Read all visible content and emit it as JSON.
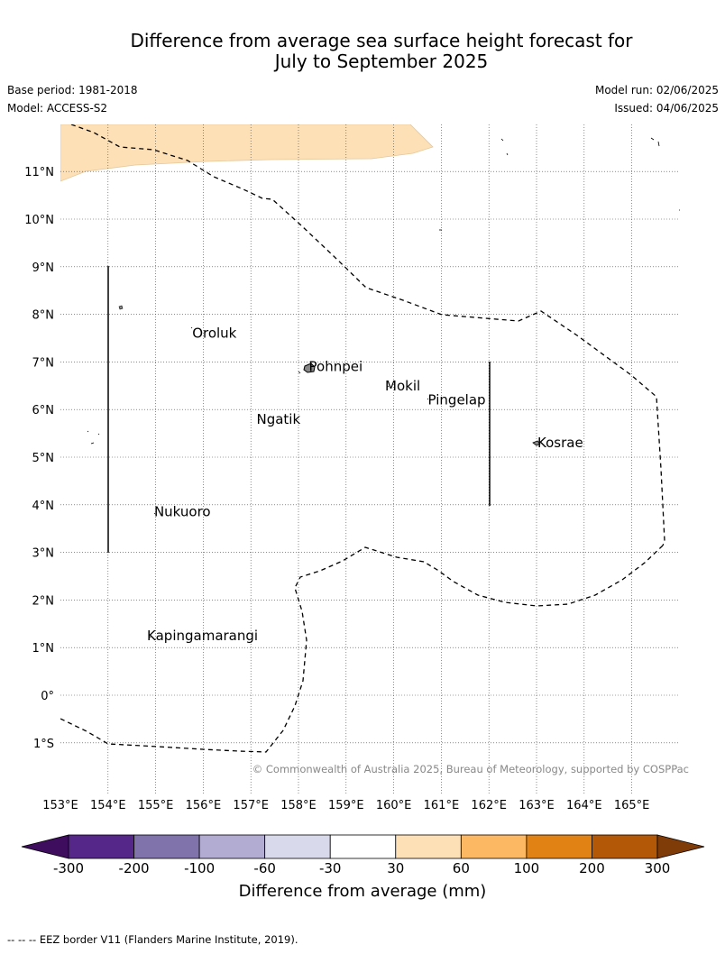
{
  "title": {
    "line1": "Difference from average sea surface height forecast for",
    "line2": "July to September 2025"
  },
  "meta": {
    "base_period": "Base period: 1981-2018",
    "model": "Model: ACCESS-S2",
    "model_run": "Model run: 02/06/2025",
    "issued": "Issued: 04/06/2025"
  },
  "map": {
    "lon_labels": [
      "153°E",
      "154°E",
      "155°E",
      "156°E",
      "157°E",
      "158°E",
      "159°E",
      "160°E",
      "161°E",
      "162°E",
      "163°E",
      "164°E",
      "165°E"
    ],
    "lat_labels": [
      "11°N",
      "10°N",
      "9°N",
      "8°N",
      "7°N",
      "6°N",
      "5°N",
      "4°N",
      "3°N",
      "2°N",
      "1°N",
      "0°",
      "1°S"
    ],
    "places": [
      {
        "name": "Oroluk",
        "lon": 155.75,
        "lat": 7.6
      },
      {
        "name": "Pohnpei",
        "lon": 158.2,
        "lat": 6.9
      },
      {
        "name": "Mokil",
        "lon": 159.8,
        "lat": 6.5
      },
      {
        "name": "Pingelap",
        "lon": 160.7,
        "lat": 6.2
      },
      {
        "name": "Ngatik",
        "lon": 157.1,
        "lat": 5.8
      },
      {
        "name": "Kosrae",
        "lon": 163.0,
        "lat": 5.3
      },
      {
        "name": "Nukuoro",
        "lon": 154.95,
        "lat": 3.85
      },
      {
        "name": "Kapingamarangi",
        "lon": 154.8,
        "lat": 1.25
      }
    ],
    "copyright": "© Commonwealth of Australia 2025, Bureau of Meteorology, supported by COSPPac",
    "anomaly_category": "30 to 60 mm",
    "line_style": "dashed"
  },
  "colorbar": {
    "ticks": [
      "-300",
      "-200",
      "-100",
      "-60",
      "-30",
      "30",
      "60",
      "100",
      "200",
      "300"
    ],
    "colors": [
      "#3f0d5e",
      "#542788",
      "#8073ac",
      "#b2abd2",
      "#d8daeb",
      "#ffffff",
      "#fee0b6",
      "#fdb863",
      "#e08214",
      "#b35806",
      "#7f3b08"
    ],
    "label": "Difference from average (mm)"
  },
  "footnote": "--  --  -- EEZ border V11 (Flanders Marine Institute, 2019)."
}
